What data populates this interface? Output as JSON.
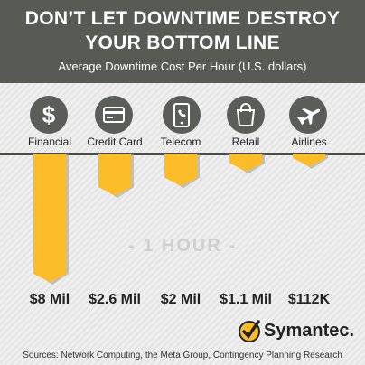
{
  "header": {
    "title_line1": "DON’T LET DOWNTIME DESTROY",
    "title_line2": "YOUR BOTTOM LINE",
    "subtitle": "Average Downtime Cost Per Hour (U.S. dollars)"
  },
  "colors": {
    "header_bg": "#585b55",
    "bar": "#fbbc29",
    "bar_shadow": "#9a9a9a",
    "icon_bg": "#5a5d58"
  },
  "icons": [
    "dollar-icon",
    "credit-card-icon",
    "phone-icon",
    "shopping-bag-icon",
    "airplane-icon"
  ],
  "chart_data": {
    "type": "bar",
    "categories": [
      "Financial",
      "Credit Card",
      "Telecom",
      "Retail",
      "Airlines"
    ],
    "values": [
      8,
      2.6,
      2,
      1.1,
      0.112
    ],
    "value_labels": [
      "$8 Mil",
      "$2.6 Mil",
      "$2 Mil",
      "$1.1 Mil",
      "$112K"
    ],
    "ylabel": "",
    "annotation": "- 1 HOUR -",
    "direction": "downward",
    "grid": false
  },
  "footer": {
    "logo_text": "Symantec.",
    "sources": "Sources: Network Computing, the Meta Group, Contingency Planning Research"
  }
}
